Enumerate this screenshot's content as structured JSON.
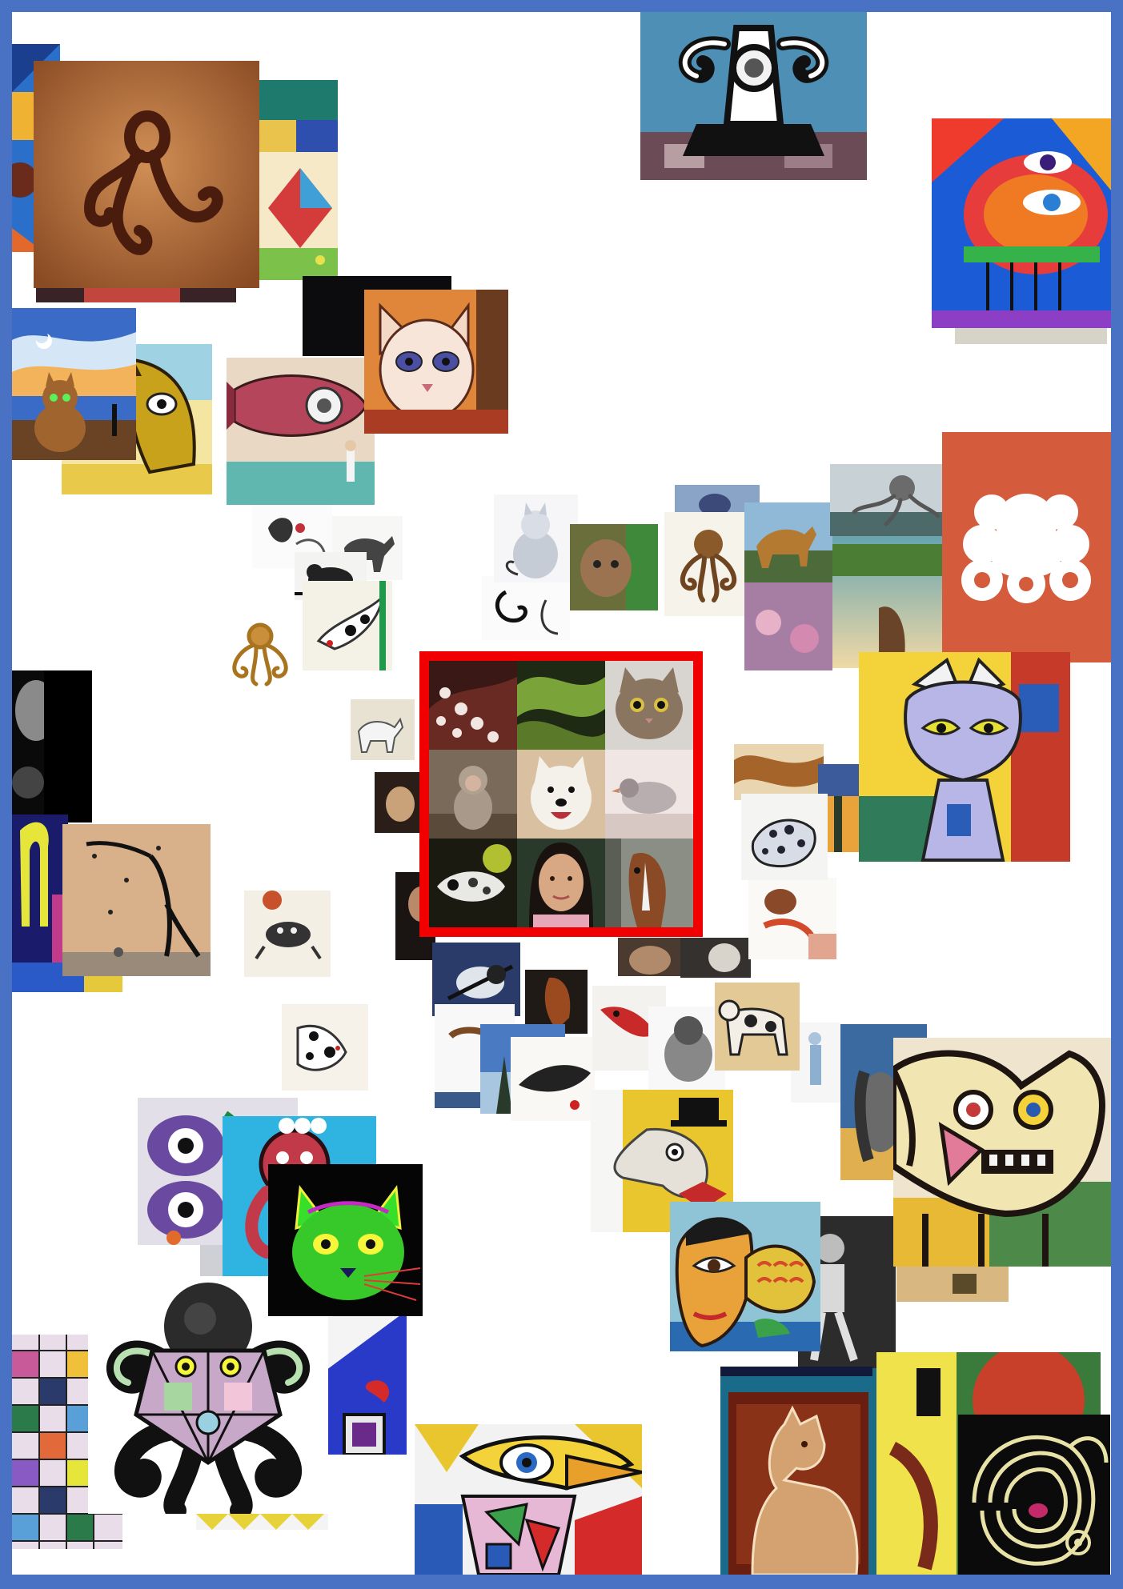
{
  "page": {
    "frame_color": "#4a72c4",
    "background": "#ffffff"
  },
  "highlight": {
    "border_color": "#f00000",
    "cells": [
      {
        "subject": "octopus-photo"
      },
      {
        "subject": "snake-photo"
      },
      {
        "subject": "cat-photo"
      },
      {
        "subject": "monkey-photo"
      },
      {
        "subject": "dog-photo"
      },
      {
        "subject": "bird-photo"
      },
      {
        "subject": "fish-photo"
      },
      {
        "subject": "woman-portrait-photo"
      },
      {
        "subject": "horse-photo"
      }
    ]
  },
  "collage": {
    "tiles": [
      {
        "subject": "cave-painting-octopus"
      },
      {
        "subject": "ink-octopus-pattern"
      },
      {
        "subject": "folk-art-bird"
      },
      {
        "subject": "geometric-patchwork"
      },
      {
        "subject": "surreal-cat-sunset"
      },
      {
        "subject": "surreal-horse-head"
      },
      {
        "subject": "surreal-fish"
      },
      {
        "subject": "decorated-cat-portrait"
      },
      {
        "subject": "octopus-logo"
      },
      {
        "subject": "cubist-cat"
      },
      {
        "subject": "cubist-dog"
      },
      {
        "subject": "cubist-bird"
      },
      {
        "subject": "neon-cat"
      },
      {
        "subject": "geometric-octopus"
      },
      {
        "subject": "fish-face-portrait"
      },
      {
        "subject": "dog-in-top-hat"
      },
      {
        "subject": "spiral-face"
      },
      {
        "subject": "rustic-dog"
      }
    ]
  }
}
